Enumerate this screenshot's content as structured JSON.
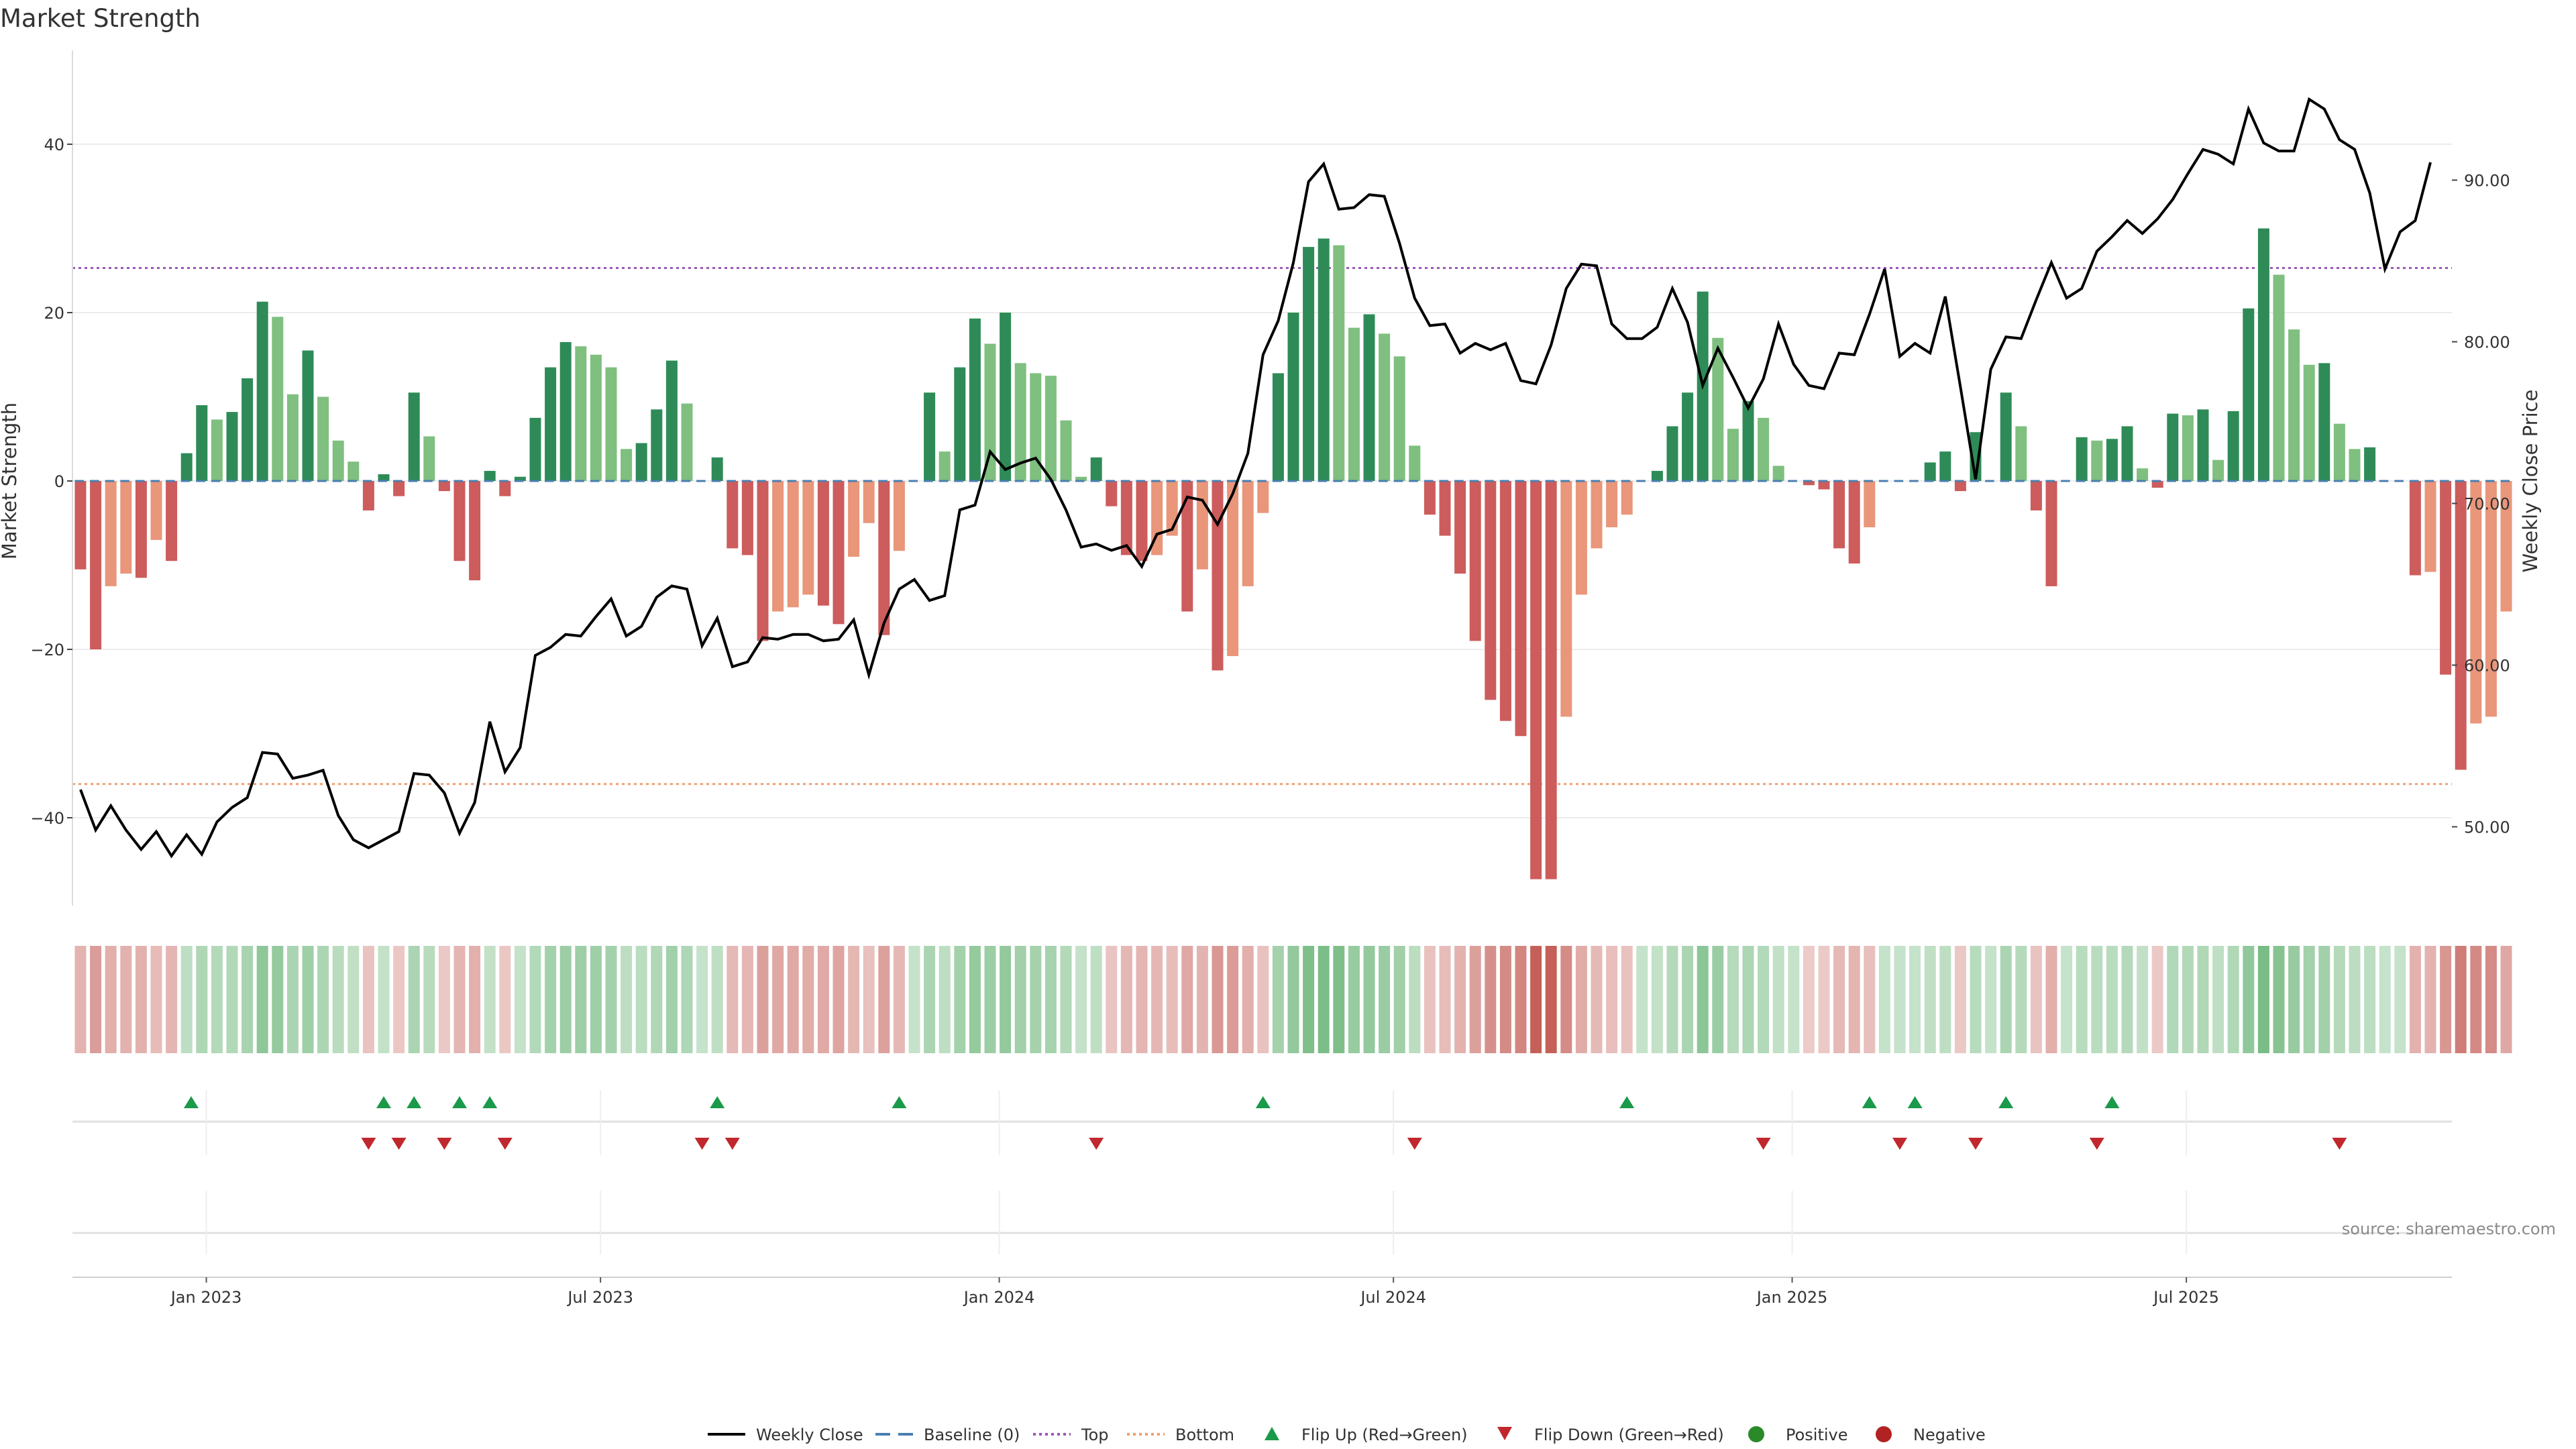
{
  "chart_data": {
    "type": "bar",
    "title": "Market Strength",
    "ylabel_left": "Market Strength",
    "ylabel_right": "Weekly Close Price",
    "left_ticks": [
      40,
      20,
      0,
      -20,
      -40
    ],
    "left_tick_labels": [
      "40",
      "20",
      "0",
      "−20",
      "−40"
    ],
    "right_ticks": [
      90,
      80,
      70,
      60,
      50
    ],
    "right_tick_labels": [
      "90.00",
      "80.00",
      "70.00",
      "60.00",
      "50.00"
    ],
    "ylim_left": [
      -51,
      51
    ],
    "ylim_right": [
      44.7,
      96.2
    ],
    "top_threshold": 25.3,
    "bottom_threshold": -36,
    "x_tick_labels": [
      "Jan 2023",
      "Jul 2023",
      "Jan 2024",
      "Jul 2024",
      "Jan 2025",
      "Jul 2025"
    ],
    "x_tick_weeks": [
      8.3,
      34.3,
      60.6,
      86.6,
      112.9,
      138.9
    ],
    "strength": [
      -10.5,
      -20,
      -12.5,
      -11,
      -11.5,
      -7,
      -9.5,
      3.3,
      9,
      7.3,
      8.2,
      12.2,
      21.3,
      19.5,
      10.3,
      15.5,
      10,
      4.8,
      2.3,
      -3.5,
      0.8,
      -1.8,
      10.5,
      5.3,
      -1.2,
      -9.5,
      -11.8,
      1.2,
      -1.8,
      0.5,
      7.5,
      13.5,
      16.5,
      16,
      15,
      13.5,
      3.8,
      4.5,
      8.5,
      14.3,
      9.2,
      0,
      2.8,
      -8,
      -8.8,
      -19,
      -15.5,
      -15,
      -13.5,
      -14.8,
      -17,
      -9,
      -5,
      -18.3,
      -8.3,
      0,
      10.5,
      3.5,
      13.5,
      19.3,
      16.3,
      20,
      14,
      12.8,
      12.5,
      7.2,
      0.5,
      2.8,
      -3,
      -8.8,
      -9.5,
      -8.8,
      -6.5,
      -15.5,
      -10.5,
      -22.5,
      -20.8,
      -12.5,
      -3.8,
      12.8,
      20,
      27.8,
      28.8,
      28,
      18.2,
      19.8,
      17.5,
      14.8,
      4.2,
      -4,
      -6.5,
      -11,
      -19,
      -26,
      -28.5,
      -30.3,
      -47.3,
      -47.3,
      -28,
      -13.5,
      -8,
      -5.5,
      -4,
      0,
      1.2,
      6.5,
      10.5,
      22.5,
      17,
      6.2,
      9.5,
      7.5,
      1.8,
      0,
      -0.5,
      -1,
      -8,
      -9.8,
      -5.5,
      0,
      0,
      0,
      2.2,
      3.5,
      -1.2,
      5.8,
      0,
      10.5,
      6.5,
      -3.5,
      -12.5,
      0,
      5.2,
      4.8,
      5,
      6.5,
      1.5,
      -0.8,
      8,
      7.8,
      8.5,
      2.5,
      8.3,
      20.5,
      30,
      24.5,
      18,
      13.8,
      14,
      6.8,
      3.8,
      4,
      0,
      0,
      -11.2,
      -10.8,
      -23,
      -34.3,
      -28.8,
      -28,
      -15.5
    ],
    "flip_up_weeks": [
      7.3,
      20,
      22,
      25,
      27,
      42,
      54,
      78,
      102,
      118,
      121,
      127,
      134
    ],
    "flip_down_weeks": [
      19,
      21,
      24,
      28,
      41,
      43,
      67,
      88,
      111,
      120,
      125,
      133,
      149
    ],
    "weekly_close": [
      52.3,
      49.8,
      51.3,
      49.8,
      48.6,
      49.7,
      48.2,
      49.5,
      48.3,
      50.3,
      51.2,
      51.8,
      54.6,
      54.5,
      53,
      53.2,
      53.5,
      50.7,
      49.2,
      48.7,
      49.2,
      49.7,
      53.3,
      53.2,
      52.1,
      49.6,
      51.5,
      56.5,
      53.4,
      54.9,
      60.6,
      61.1,
      61.9,
      61.8,
      63,
      64.1,
      61.8,
      62.4,
      64.2,
      64.9,
      64.7,
      61.2,
      62.9,
      59.9,
      60.2,
      61.7,
      61.6,
      61.9,
      61.9,
      61.5,
      61.6,
      62.8,
      59.4,
      62.6,
      64.7,
      65.3,
      64,
      64.3,
      69.6,
      69.9,
      73.2,
      72.1,
      72.5,
      72.8,
      71.5,
      69.6,
      67.3,
      67.5,
      67.1,
      67.4,
      66.1,
      68.1,
      68.4,
      70.4,
      70.2,
      68.7,
      70.6,
      73.1,
      79.2,
      81.3,
      84.9,
      89.9,
      91,
      88.2,
      88.3,
      89.1,
      89,
      86.1,
      82.7,
      81,
      81.1,
      79.3,
      79.9,
      79.5,
      79.9,
      77.6,
      77.4,
      79.8,
      83.3,
      84.8,
      84.7,
      81.1,
      80.2,
      80.2,
      80.9,
      83.3,
      81.2,
      77.3,
      79.6,
      77.8,
      75.9,
      77.7,
      81.1,
      78.6,
      77.3,
      77.1,
      79.3,
      79.2,
      81.7,
      84.5,
      79.1,
      79.9,
      79.3,
      82.8,
      77.2,
      71.5,
      78.3,
      80.3,
      80.2,
      82.6,
      84.9,
      82.7,
      83.3,
      85.6,
      86.5,
      87.5,
      86.7,
      87.6,
      88.8,
      90.4,
      91.9,
      91.6,
      91,
      94.4,
      92.3,
      91.8,
      91.8,
      95,
      94.4,
      92.5,
      91.9,
      89.2,
      84.5,
      86.8,
      87.5,
      91.1
    ]
  },
  "colors": {
    "pos_strong": "#2e8b57",
    "pos_weak": "#7fbf7f",
    "neg_strong": "#cd5c5c",
    "neg_weak": "#e9967a",
    "top_line": "#9b59b6",
    "bottom_line": "#f0a070",
    "baseline": "#4a7fb0",
    "flip_up": "#1a9a4a",
    "flip_down": "#c0282d",
    "positive_dot": "#2a8a2a",
    "negative_dot": "#b22222",
    "price_line": "#000000"
  },
  "legend": [
    {
      "label": "Weekly Close",
      "kind": "line"
    },
    {
      "label": "Baseline (0)",
      "kind": "dash"
    },
    {
      "label": "Top",
      "kind": "dot-purple"
    },
    {
      "label": "Bottom",
      "kind": "dot-orange"
    },
    {
      "label": "Flip Up (Red→Green)",
      "kind": "tri-up"
    },
    {
      "label": "Flip Down (Green→Red)",
      "kind": "tri-down"
    },
    {
      "label": "Positive",
      "kind": "dot-green"
    },
    {
      "label": "Negative",
      "kind": "dot-red"
    }
  ],
  "source": "source: sharemaestro.com"
}
